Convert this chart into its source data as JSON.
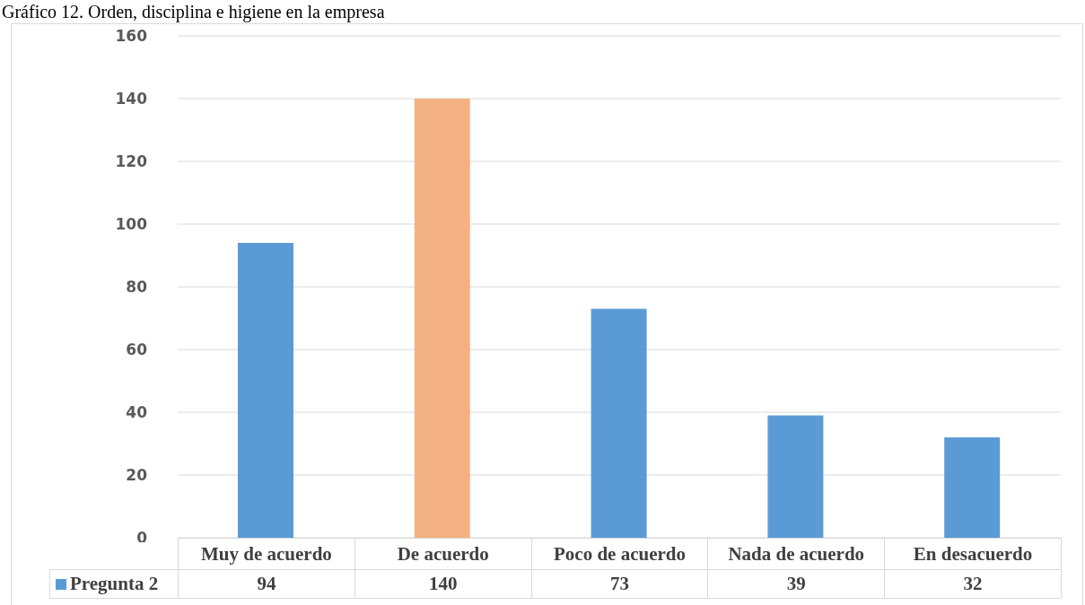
{
  "chart_data": {
    "type": "bar",
    "title": "Gráfico 12. Orden, disciplina e higiene en la empresa",
    "categories": [
      "Muy de acuerdo",
      "De acuerdo",
      "Poco de acuerdo",
      "Nada de acuerdo",
      "En desacuerdo"
    ],
    "series": [
      {
        "name": "Pregunta 2",
        "color": "#5b9bd5",
        "colors": [
          "#5b9bd5",
          "#f4b183",
          "#5b9bd5",
          "#5b9bd5",
          "#5b9bd5"
        ],
        "values": [
          94,
          140,
          73,
          39,
          32
        ]
      }
    ],
    "ylim": [
      0,
      160
    ],
    "yticks": [
      0,
      20,
      40,
      60,
      80,
      100,
      120,
      140,
      160
    ],
    "grid": "y",
    "data_labels": true
  }
}
